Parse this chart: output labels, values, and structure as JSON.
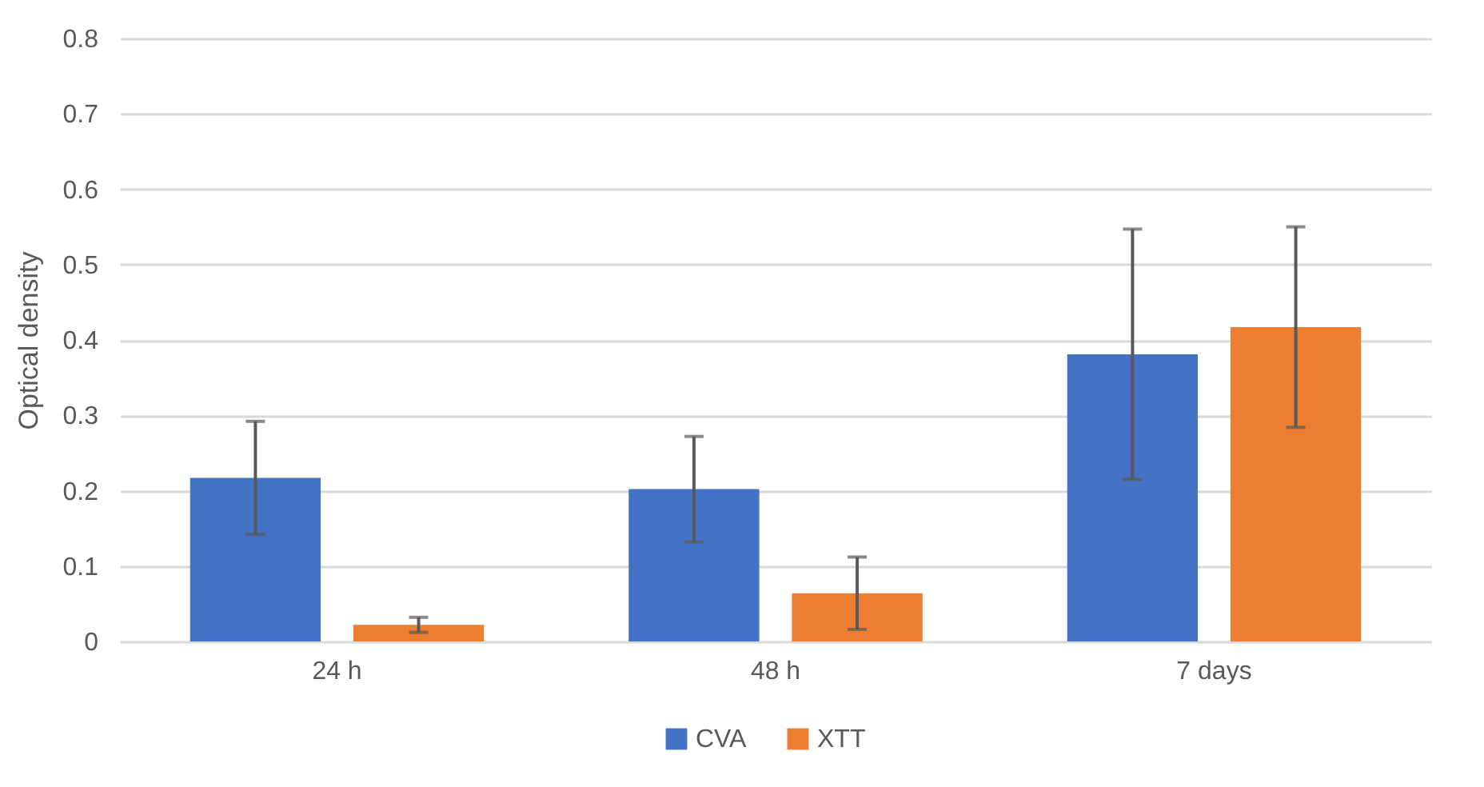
{
  "chart_data": {
    "type": "bar",
    "ylabel": "Optical density",
    "categories": [
      "24 h",
      "48 h",
      "7 days"
    ],
    "series": [
      {
        "name": "CVA",
        "color": "#4472c4",
        "values": [
          0.217,
          0.202,
          0.381
        ],
        "errors": [
          0.075,
          0.07,
          0.166
        ]
      },
      {
        "name": "XTT",
        "color": "#ed7d31",
        "values": [
          0.022,
          0.064,
          0.417
        ],
        "errors": [
          0.01,
          0.048,
          0.133
        ]
      }
    ],
    "ylim": [
      0,
      0.8
    ],
    "yticks": [
      0,
      0.1,
      0.2,
      0.3,
      0.4,
      0.5,
      0.6,
      0.7,
      0.8
    ],
    "grid": "y",
    "legend": "bottom"
  }
}
